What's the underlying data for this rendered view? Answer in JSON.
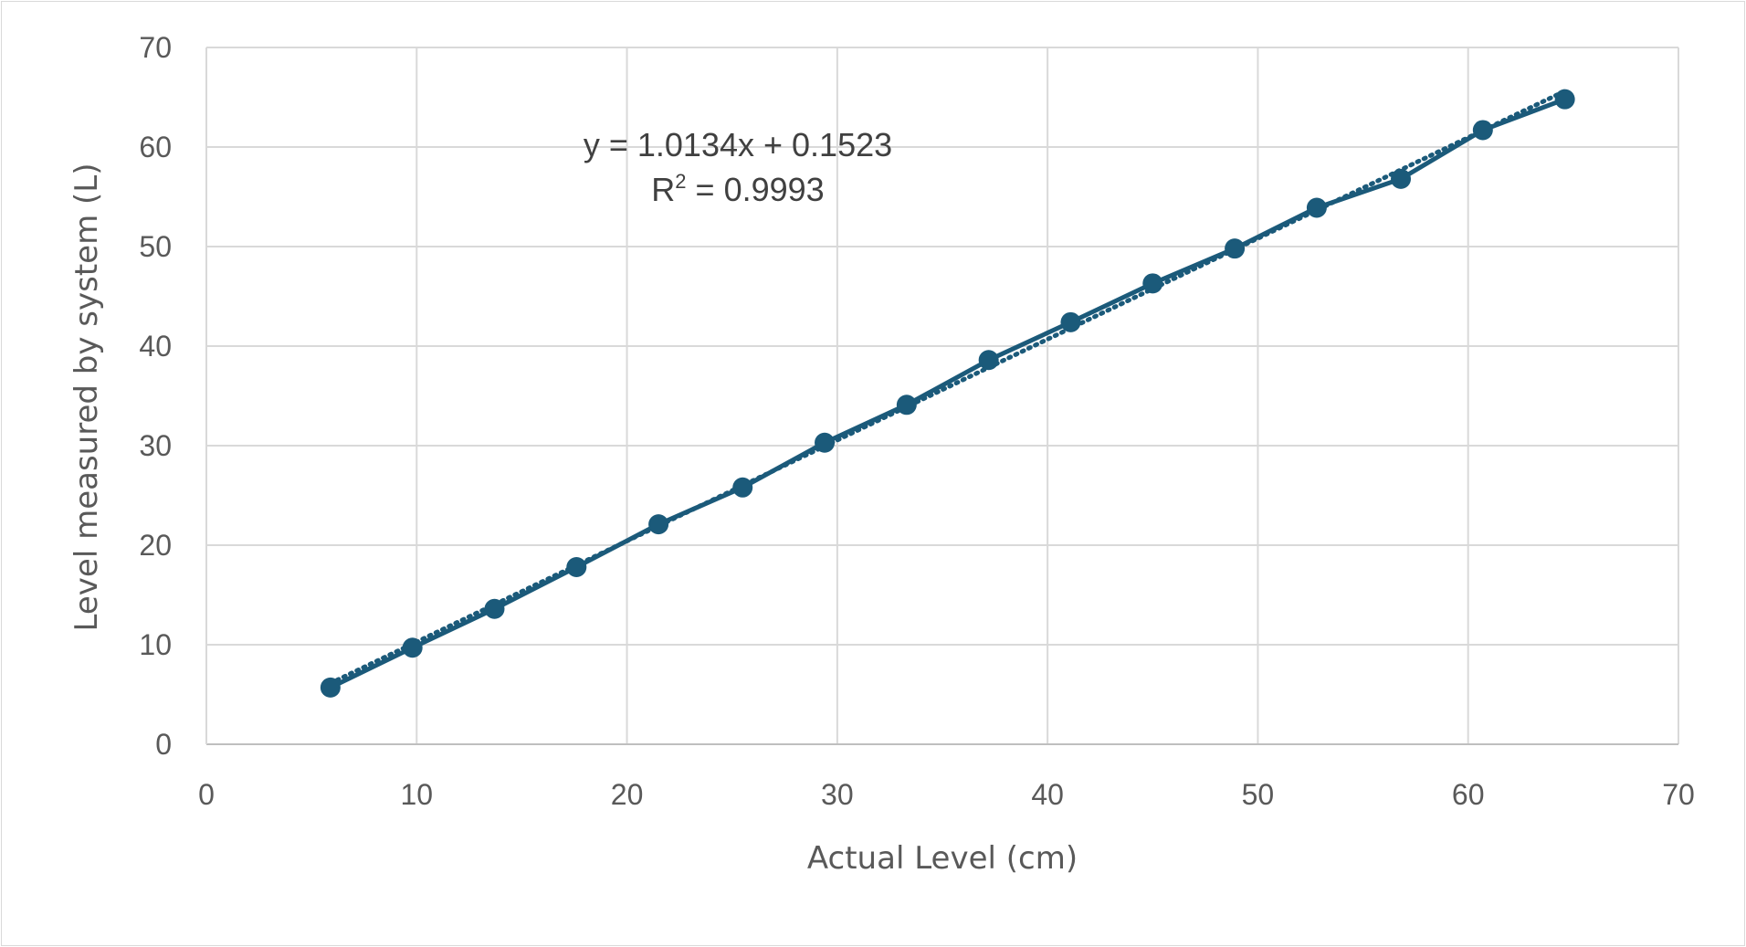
{
  "chart_data": {
    "type": "scatter",
    "title": "",
    "xlabel": "Actual Level (cm)",
    "ylabel": "Level measured by system (L)",
    "xlim": [
      0,
      70
    ],
    "ylim": [
      0,
      70
    ],
    "x_ticks": [
      "0",
      "10",
      "20",
      "30",
      "40",
      "50",
      "60",
      "70"
    ],
    "y_ticks": [
      "0",
      "10",
      "20",
      "30",
      "40",
      "50",
      "60",
      "70"
    ],
    "grid": true,
    "legend": "none",
    "series": [
      {
        "color": "#1b5a7a",
        "marker": "circle",
        "line": "solid",
        "x": [
          5.9,
          9.8,
          13.7,
          17.6,
          21.5,
          25.5,
          29.4,
          33.3,
          37.2,
          41.1,
          45.0,
          48.9,
          52.8,
          56.8,
          60.7,
          64.6
        ],
        "y": [
          5.7,
          9.7,
          13.6,
          17.8,
          22.1,
          25.8,
          30.3,
          34.1,
          38.6,
          42.4,
          46.3,
          49.8,
          53.9,
          56.8,
          61.7,
          64.8
        ]
      }
    ],
    "trendline": {
      "type": "linear",
      "style": "dotted",
      "color": "#1b5a7a",
      "slope": 1.0134,
      "intercept": 0.1523,
      "equation_label": "y = 1.0134x + 0.1523",
      "r2_prefix": "R",
      "r2_superscript": "2",
      "r2_value": " = 0.9993"
    }
  }
}
